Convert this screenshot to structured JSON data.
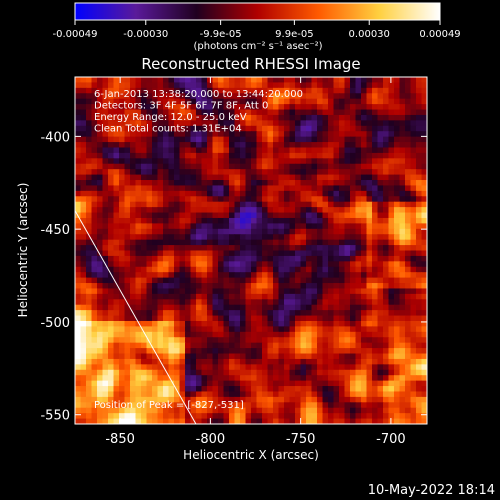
{
  "colorbar": {
    "ticks": [
      "-0.00049",
      "-0.00030",
      "-9.9e-05",
      "9.9e-05",
      "0.00030",
      "0.00049"
    ],
    "tick_values": [
      -0.00049,
      -0.0003,
      -9.9e-05,
      9.9e-05,
      0.0003,
      0.00049
    ],
    "units_label": "(photons cm⁻² s⁻¹ asec⁻²)",
    "stops": [
      "#0000ff",
      "#5a1a9a",
      "#200020",
      "#b00000",
      "#ff5a00",
      "#ffd040",
      "#ffffff"
    ]
  },
  "chart_data": {
    "type": "heatmap",
    "title": "Reconstructed RHESSI Image",
    "xlabel": "Heliocentric X (arcsec)",
    "ylabel": "Heliocentric Y (arcsec)",
    "xlim": [
      -875,
      -680
    ],
    "ylim": [
      -555,
      -368
    ],
    "xticks": [
      "-850",
      "-800",
      "-750",
      "-700"
    ],
    "xtick_values": [
      -850,
      -800,
      -750,
      -700
    ],
    "yticks": [
      "-400",
      "-450",
      "-500",
      "-550"
    ],
    "ytick_values": [
      -400,
      -450,
      -500,
      -550
    ],
    "grid": false,
    "colormap": "RHESSI flux",
    "annotations": [
      "6-Jan-2013 13:38:20.000 to 13:44:20.000",
      "Detectors: 3F 4F 5F 6F 7F 8F, Att 0",
      "Energy Range: 12.0 - 25.0 keV",
      "Clean      Total counts: 1.31E+04"
    ],
    "peak_label": "Position of Peak = [-827,-531]",
    "peak": [
      -827,
      -531
    ],
    "limb_line": [
      [
        -875,
        -440
      ],
      [
        -808,
        -555
      ]
    ]
  },
  "footer": {
    "timestamp": "10-May-2022 18:14"
  }
}
